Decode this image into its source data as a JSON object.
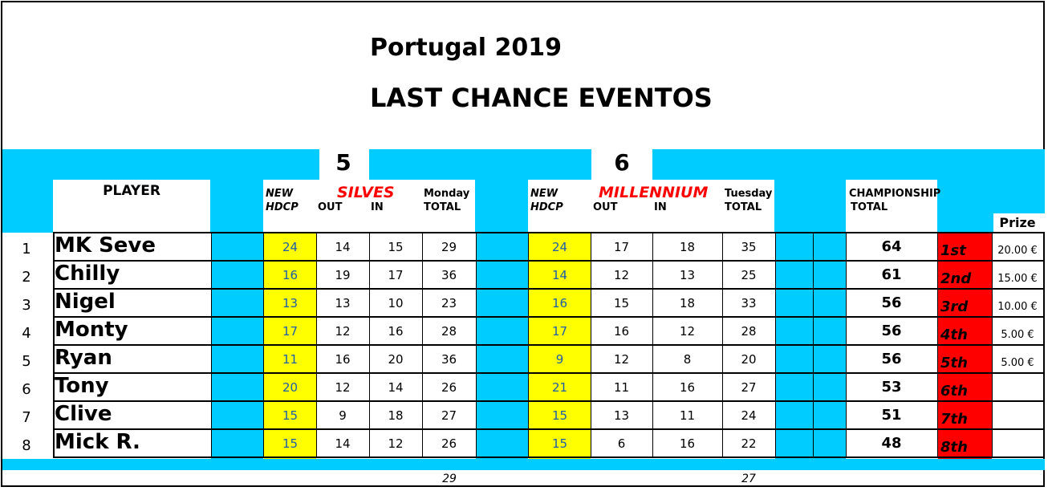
{
  "title_line1": "Portugal 2019",
  "title_line2": "LAST CHANCE EVENTOS",
  "colors": {
    "cyan": "#00ccff",
    "yellow": "#ffff00",
    "red": "#ff0000",
    "handicap_text": "#1f5ea8"
  },
  "rounds": [
    {
      "number": "5",
      "course": "SILVES",
      "day_total_l1": "Monday",
      "day_total_l2": "TOTAL"
    },
    {
      "number": "6",
      "course": "MILLENNIUM",
      "day_total_l1": "Tuesday",
      "day_total_l2": "TOTAL"
    }
  ],
  "headers": {
    "player": "PLAYER",
    "new": "NEW",
    "hdcp": "HDCP",
    "out": "OUT",
    "in": "IN",
    "championship": "CHAMPIONSHIP",
    "total": "TOTAL",
    "prize": "Prize"
  },
  "rows": [
    {
      "pos": "1",
      "name": "MK Seve",
      "h1": "24",
      "out1": "14",
      "in1": "15",
      "tot1": "29",
      "h2": "24",
      "out2": "17",
      "in2": "18",
      "tot2": "35",
      "champ": "64",
      "place": "1st",
      "prize": "20.00 €"
    },
    {
      "pos": "2",
      "name": "Chilly",
      "h1": "16",
      "out1": "19",
      "in1": "17",
      "tot1": "36",
      "h2": "14",
      "out2": "12",
      "in2": "13",
      "tot2": "25",
      "champ": "61",
      "place": "2nd",
      "prize": "15.00 €"
    },
    {
      "pos": "3",
      "name": "Nigel",
      "h1": "13",
      "out1": "13",
      "in1": "10",
      "tot1": "23",
      "h2": "16",
      "out2": "15",
      "in2": "18",
      "tot2": "33",
      "champ": "56",
      "place": "3rd",
      "prize": "10.00 €"
    },
    {
      "pos": "4",
      "name": "Monty",
      "h1": "17",
      "out1": "12",
      "in1": "16",
      "tot1": "28",
      "h2": "17",
      "out2": "16",
      "in2": "12",
      "tot2": "28",
      "champ": "56",
      "place": "4th",
      "prize": "5.00 €"
    },
    {
      "pos": "5",
      "name": "Ryan",
      "h1": "11",
      "out1": "16",
      "in1": "20",
      "tot1": "36",
      "h2": "9",
      "out2": "12",
      "in2": "8",
      "tot2": "20",
      "champ": "56",
      "place": "5th",
      "prize": "5.00 €"
    },
    {
      "pos": "6",
      "name": "Tony",
      "h1": "20",
      "out1": "12",
      "in1": "14",
      "tot1": "26",
      "h2": "21",
      "out2": "11",
      "in2": "16",
      "tot2": "27",
      "champ": "53",
      "place": "6th",
      "prize": ""
    },
    {
      "pos": "7",
      "name": "Clive",
      "h1": "15",
      "out1": "9",
      "in1": "18",
      "tot1": "27",
      "h2": "15",
      "out2": "13",
      "in2": "11",
      "tot2": "24",
      "champ": "51",
      "place": "7th",
      "prize": ""
    },
    {
      "pos": "8",
      "name": "Mick R.",
      "h1": "15",
      "out1": "14",
      "in1": "12",
      "tot1": "26",
      "h2": "15",
      "out2": "6",
      "in2": "16",
      "tot2": "22",
      "champ": "48",
      "place": "8th",
      "prize": ""
    }
  ],
  "footer": {
    "round1_best": "29",
    "round2_best": "27"
  }
}
